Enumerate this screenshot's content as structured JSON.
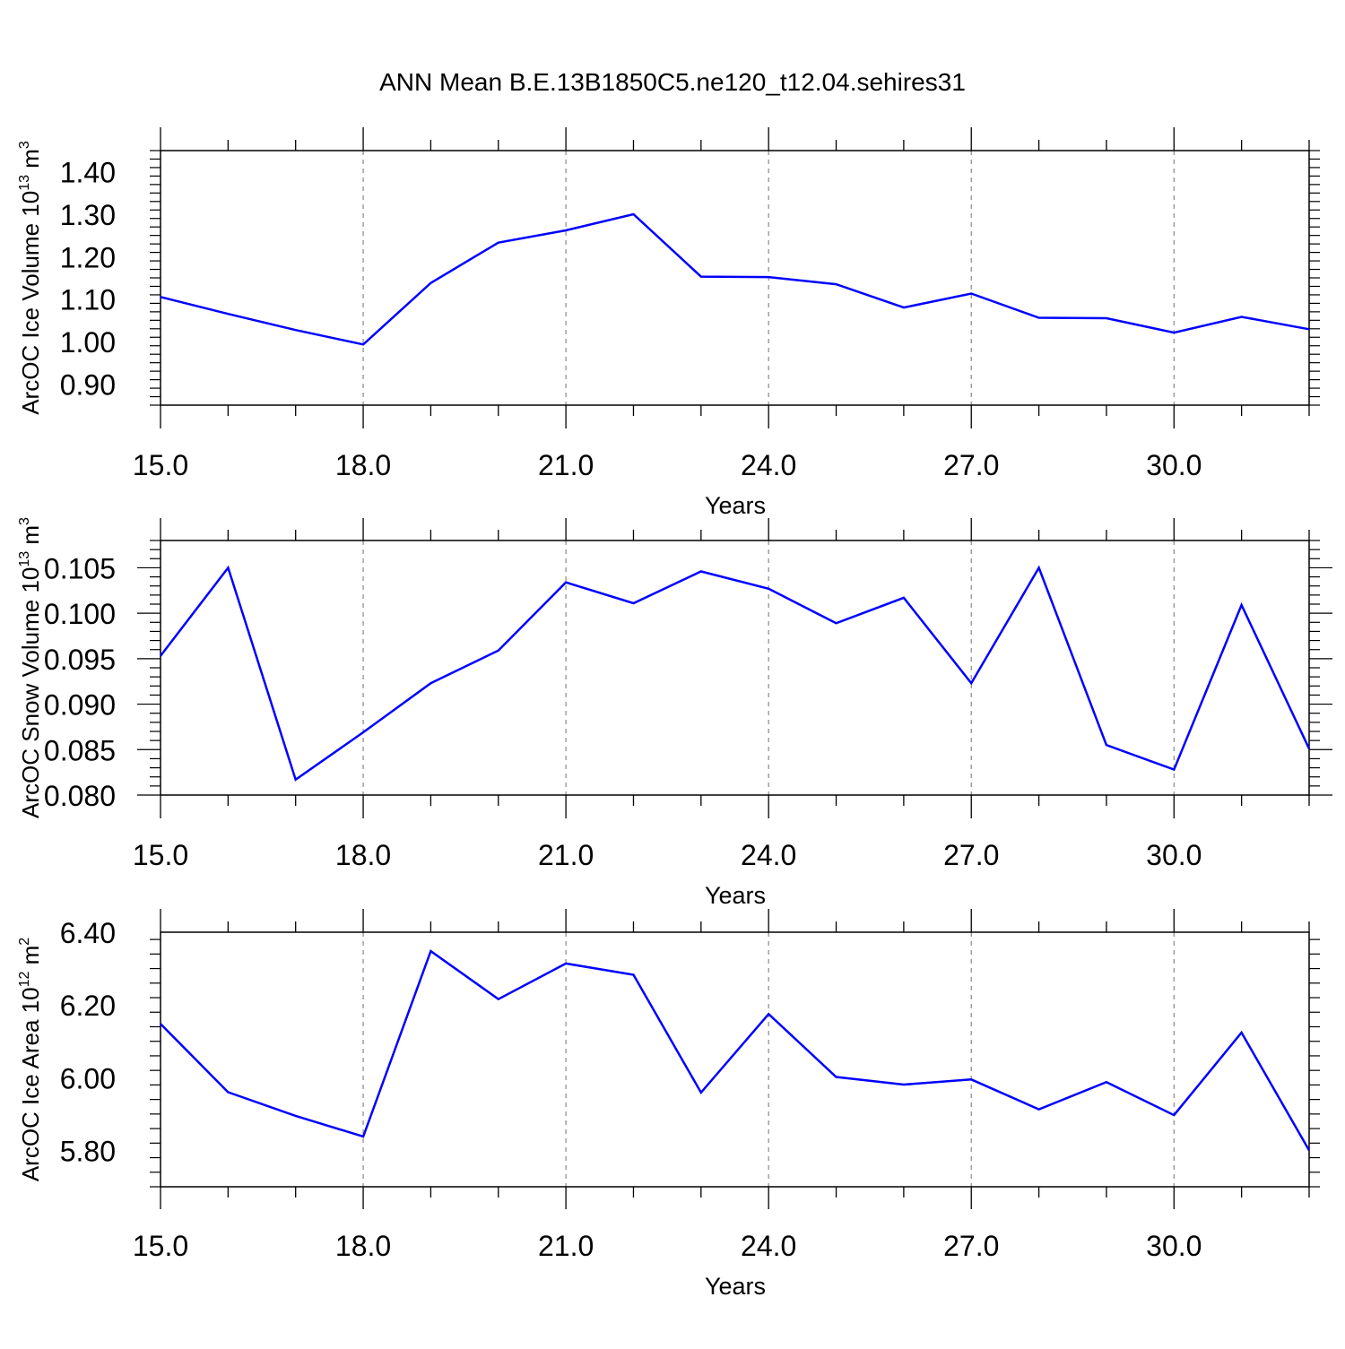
{
  "title": "ANN Mean B.E.13B1850C5.ne120_t12.04.sehires31",
  "colors": {
    "line": "#0000ff",
    "axis": "#000000",
    "grid": "#888888"
  },
  "chart_data": [
    {
      "type": "line",
      "ylabel": "ArcOC Ice Volume 10",
      "ylabel_exp": "13",
      "ylabel_unit": " m",
      "ylabel_unit_exp": "3",
      "xlabel": "Years",
      "xlim": [
        15,
        32
      ],
      "ylim": [
        0.85,
        1.45
      ],
      "x_ticks": [
        15,
        18,
        21,
        24,
        27,
        30
      ],
      "x_tick_labels": [
        "15.0",
        "18.0",
        "21.0",
        "24.0",
        "27.0",
        "30.0"
      ],
      "y_ticks": [
        0.9,
        1.0,
        1.1,
        1.2,
        1.3,
        1.4
      ],
      "y_tick_labels": [
        "0.90",
        "1.00",
        "1.10",
        "1.20",
        "1.30",
        "1.40"
      ],
      "grid": "vertical-dashed-at-major-x",
      "x": [
        15,
        16,
        17,
        18,
        19,
        20,
        21,
        22,
        23,
        24,
        25,
        26,
        27,
        28,
        29,
        30,
        31,
        32
      ],
      "values": [
        1.105,
        1.065,
        1.027,
        0.993,
        1.138,
        1.233,
        1.262,
        1.3,
        1.153,
        1.152,
        1.135,
        1.08,
        1.113,
        1.056,
        1.055,
        1.021,
        1.058,
        1.029
      ]
    },
    {
      "type": "line",
      "ylabel": "ArcOC Snow Volume 10",
      "ylabel_exp": "13",
      "ylabel_unit": " m",
      "ylabel_unit_exp": "3",
      "xlabel": "Years",
      "xlim": [
        15,
        32
      ],
      "ylim": [
        0.08,
        0.108
      ],
      "x_ticks": [
        15,
        18,
        21,
        24,
        27,
        30
      ],
      "x_tick_labels": [
        "15.0",
        "18.0",
        "21.0",
        "24.0",
        "27.0",
        "30.0"
      ],
      "y_ticks": [
        0.08,
        0.085,
        0.09,
        0.095,
        0.1,
        0.105
      ],
      "y_tick_labels": [
        "0.080",
        "0.085",
        "0.090",
        "0.095",
        "0.100",
        "0.105"
      ],
      "grid": "vertical-dashed-at-major-x",
      "x": [
        15,
        16,
        17,
        18,
        19,
        20,
        21,
        22,
        23,
        24,
        25,
        26,
        27,
        28,
        29,
        30,
        31,
        32
      ],
      "values": [
        0.0953,
        0.105,
        0.0817,
        0.0869,
        0.0923,
        0.0959,
        0.1034,
        0.1011,
        0.1046,
        0.1027,
        0.0989,
        0.1017,
        0.0923,
        0.105,
        0.0855,
        0.0828,
        0.1009,
        0.0851
      ]
    },
    {
      "type": "line",
      "ylabel": "ArcOC Ice Area 10",
      "ylabel_exp": "12",
      "ylabel_unit": " m",
      "ylabel_unit_exp": "2",
      "xlabel": "Years",
      "xlim": [
        15,
        32
      ],
      "ylim": [
        5.7,
        6.4
      ],
      "x_ticks": [
        15,
        18,
        21,
        24,
        27,
        30
      ],
      "x_tick_labels": [
        "15.0",
        "18.0",
        "21.0",
        "24.0",
        "27.0",
        "30.0"
      ],
      "y_ticks": [
        5.8,
        6.0,
        6.2,
        6.4
      ],
      "y_tick_labels": [
        "5.80",
        "6.00",
        "6.20",
        "6.40"
      ],
      "grid": "vertical-dashed-at-major-x",
      "x": [
        15,
        16,
        17,
        18,
        19,
        20,
        21,
        22,
        23,
        24,
        25,
        26,
        27,
        28,
        29,
        30,
        31,
        32
      ],
      "values": [
        6.148,
        5.96,
        5.895,
        5.838,
        6.348,
        6.216,
        6.314,
        6.283,
        5.959,
        6.175,
        6.002,
        5.981,
        5.995,
        5.913,
        5.988,
        5.897,
        6.124,
        5.8
      ]
    }
  ]
}
